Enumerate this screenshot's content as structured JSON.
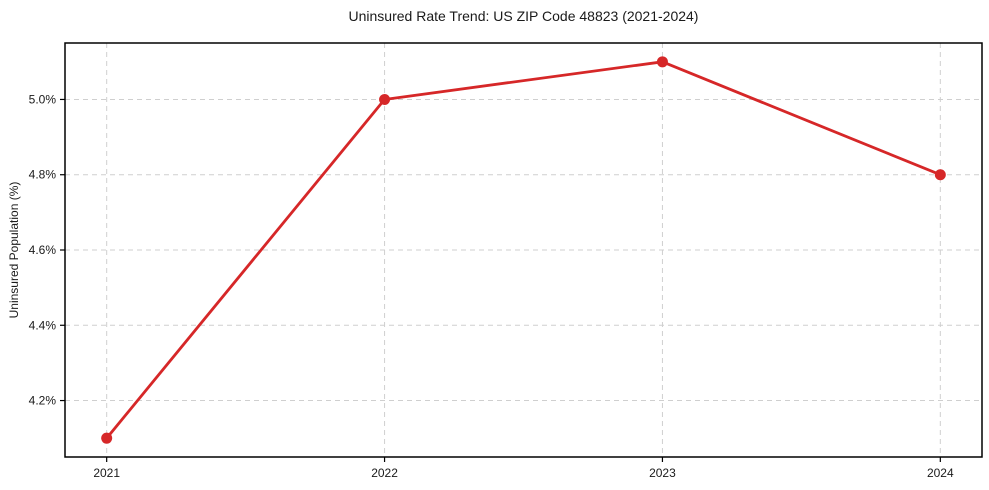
{
  "chart_data": {
    "type": "line",
    "title": "Uninsured Rate Trend: US ZIP Code 48823 (2021-2024)",
    "xlabel": "",
    "ylabel": "Uninsured Population (%)",
    "x": [
      2021,
      2022,
      2023,
      2024
    ],
    "xtick_labels": [
      "2021",
      "2022",
      "2023",
      "2024"
    ],
    "series": [
      {
        "values": [
          4.1,
          5.0,
          5.1,
          4.8
        ],
        "color": "#d62728",
        "marker": "circle",
        "line_width": 2.8,
        "marker_radius": 5.5
      }
    ],
    "yticks": [
      4.2,
      4.4,
      4.6,
      4.8,
      5.0
    ],
    "ytick_labels": [
      "4.2%",
      "4.4%",
      "4.6%",
      "4.8%",
      "5.0%"
    ],
    "xlim": [
      2020.85,
      2024.15
    ],
    "ylim": [
      4.05,
      5.15
    ],
    "grid": true,
    "grid_style": "dashed",
    "legend": "none",
    "colors": {
      "grid": "#cfcfcf",
      "spine": "#000000",
      "tick": "#000000",
      "text": "#1a1a1a",
      "background": "#ffffff"
    }
  }
}
